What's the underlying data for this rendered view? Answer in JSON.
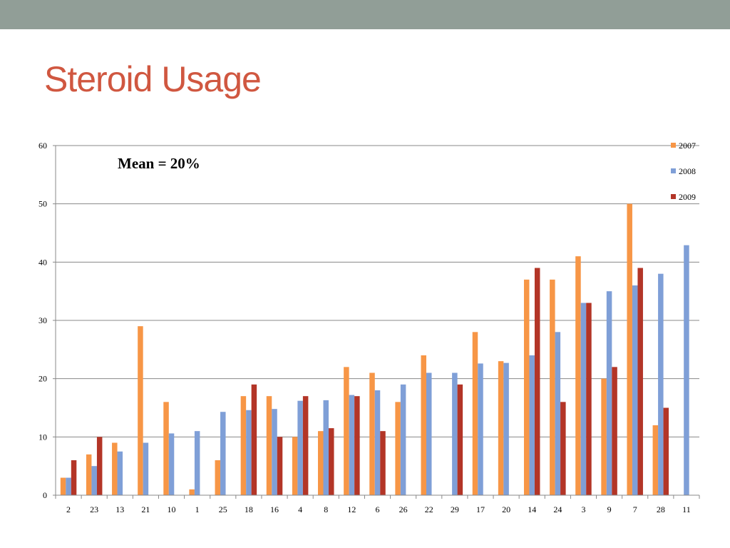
{
  "slide": {
    "title": "Steroid Usage"
  },
  "chart_data": {
    "type": "bar",
    "title": "",
    "xlabel": "",
    "ylabel": "",
    "ylim": [
      0,
      60
    ],
    "yticks": [
      0,
      10,
      20,
      30,
      40,
      50,
      60
    ],
    "grid": true,
    "legend_position": "top-right",
    "annotation": "Mean = 20%",
    "categories": [
      "2",
      "23",
      "13",
      "21",
      "10",
      "1",
      "25",
      "18",
      "16",
      "4",
      "8",
      "12",
      "6",
      "26",
      "22",
      "29",
      "17",
      "20",
      "14",
      "24",
      "3",
      "9",
      "7",
      "28",
      "11"
    ],
    "series": [
      {
        "name": "2007",
        "color": "#f79646",
        "values": [
          3,
          7,
          9,
          29,
          16,
          1,
          6,
          17,
          17,
          10,
          11,
          22,
          21,
          16,
          24,
          null,
          28,
          23,
          37,
          37,
          41,
          20,
          50,
          12,
          null
        ]
      },
      {
        "name": "2008",
        "color": "#7f9fd7",
        "values": [
          3,
          5,
          7.5,
          9,
          10.6,
          11,
          14.3,
          14.6,
          14.8,
          16.2,
          16.3,
          17.2,
          18,
          19,
          21,
          21,
          22.6,
          22.7,
          24,
          28,
          33,
          35,
          36,
          38,
          42.9
        ]
      },
      {
        "name": "2009",
        "color": "#b33527",
        "values": [
          6,
          10,
          null,
          null,
          null,
          null,
          null,
          19,
          10,
          17,
          11.5,
          17,
          11,
          null,
          null,
          19,
          null,
          null,
          39,
          16,
          33,
          22,
          39,
          15,
          null
        ]
      }
    ]
  }
}
